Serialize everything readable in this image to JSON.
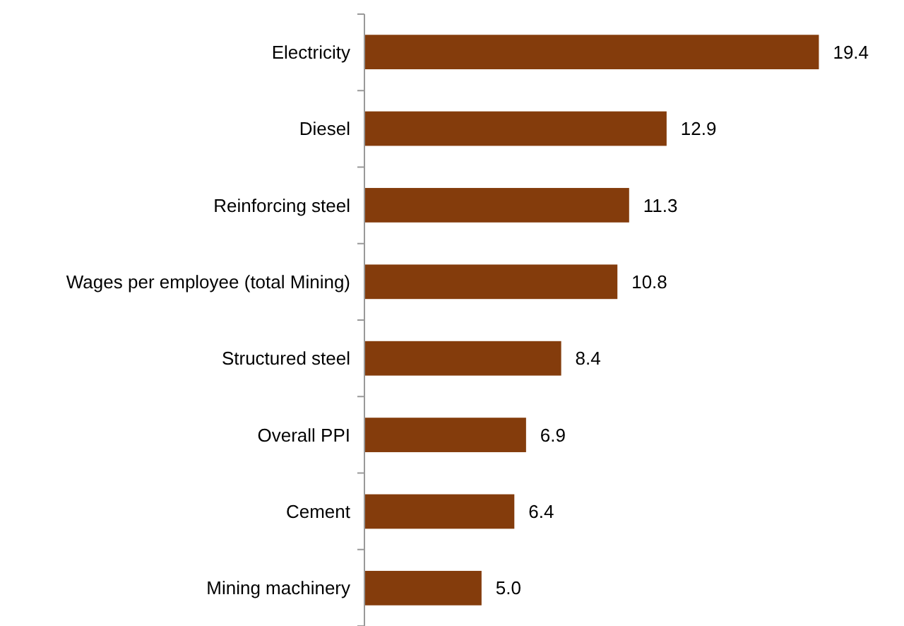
{
  "chart_data": {
    "type": "bar",
    "orientation": "horizontal",
    "categories": [
      "Electricity",
      "Diesel",
      "Reinforcing steel",
      "Wages per employee (total Mining)",
      "Structured steel",
      "Overall PPI",
      "Cement",
      "Mining machinery"
    ],
    "values": [
      19.4,
      12.9,
      11.3,
      10.8,
      8.4,
      6.9,
      6.4,
      5.0
    ],
    "value_labels": [
      "19.4",
      "12.9",
      "11.3",
      "10.8",
      "8.4",
      "6.9",
      "6.4",
      "5.0"
    ],
    "color": "#843c0c"
  }
}
